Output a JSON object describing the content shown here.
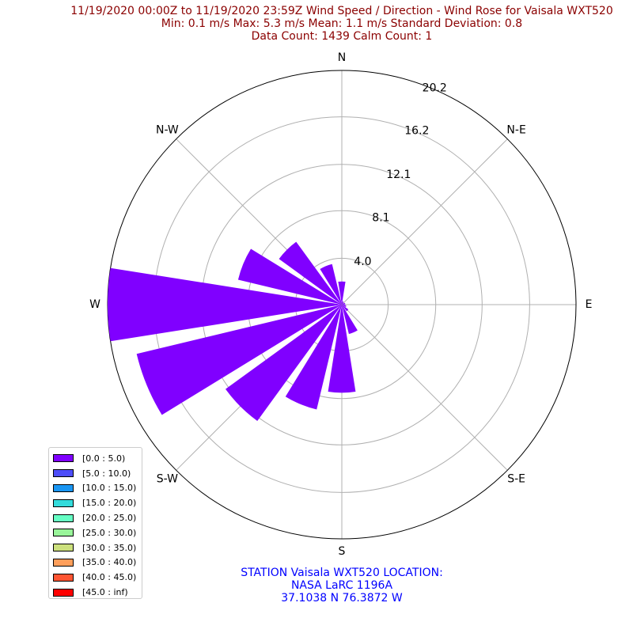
{
  "title_lines": [
    "11/19/2020 00:00Z to 11/19/2020 23:59Z Wind Speed / Direction - Wind Rose for Vaisala WXT520",
    "Min: 0.1 m/s   Max: 5.3 m/s   Mean: 1.1 m/s  Standard Deviation: 0.8",
    "Data Count: 1439  Calm Count:  1"
  ],
  "footer_lines": [
    "STATION Vaisala WXT520 LOCATION:",
    "NASA LaRC 1196A",
    "37.1038 N 76.3872 W"
  ],
  "colors": {
    "title": "#8b0000",
    "footer": "#0000ff",
    "grid": "#b0b0b0",
    "bar": "#8000ff"
  },
  "chart_data": {
    "type": "wind-rose",
    "directions": [
      "N",
      "NNE",
      "NE",
      "ENE",
      "E",
      "ESE",
      "SE",
      "SSE",
      "S",
      "SSW",
      "SW",
      "WSW",
      "W",
      "WNW",
      "NW",
      "NNW"
    ],
    "direction_labels": [
      "N",
      "N-E",
      "E",
      "S-E",
      "S",
      "S-W",
      "W",
      "N-W"
    ],
    "radial_ticks": [
      "4.0",
      "8.1",
      "12.1",
      "16.2",
      "20.2"
    ],
    "radial_tick_values": [
      4.0,
      8.1,
      12.1,
      16.2,
      20.2
    ],
    "r_max": 20.2,
    "series": [
      {
        "name": "[0.0 : 5.0)",
        "values": [
          2.0,
          0.3,
          0.2,
          0.3,
          0.3,
          0.4,
          0.7,
          2.6,
          7.6,
          9.3,
          12.4,
          18.2,
          20.2,
          9.2,
          6.7,
          3.6
        ]
      }
    ],
    "legend": {
      "placement": "lower-left",
      "entries": [
        {
          "label": "[0.0 : 5.0)",
          "color": "#8000ff"
        },
        {
          "label": "[5.0 : 10.0)",
          "color": "#4d4df9"
        },
        {
          "label": "[10.0 : 15.0)",
          "color": "#1a96f3"
        },
        {
          "label": "[15.0 : 20.0)",
          "color": "#33dbdb"
        },
        {
          "label": "[20.0 : 25.0)",
          "color": "#66ffc4"
        },
        {
          "label": "[25.0 : 30.0)",
          "color": "#99f59a"
        },
        {
          "label": "[30.0 : 35.0)",
          "color": "#cce07d"
        },
        {
          "label": "[35.0 : 40.0)",
          "color": "#ff9f5b"
        },
        {
          "label": "[40.0 : 45.0)",
          "color": "#ff5533"
        },
        {
          "label": "[45.0 : inf)",
          "color": "#ff0000"
        }
      ]
    }
  }
}
